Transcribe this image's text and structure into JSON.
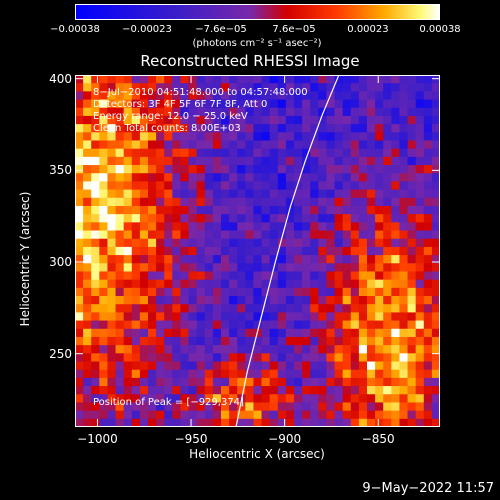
{
  "chart_data": {
    "type": "heatmap",
    "title": "Reconstructed RHESSI Image",
    "xlabel": "Heliocentric X (arcsec)",
    "ylabel": "Heliocentric Y (arcsec)",
    "xlim": [
      -1012,
      -817
    ],
    "ylim": [
      210,
      402
    ],
    "x_ticks": [
      -1000,
      -950,
      -900,
      -850
    ],
    "y_ticks": [
      250,
      300,
      350,
      400
    ],
    "x_tick_labels": [
      "−1000",
      "−950",
      "−900",
      "−850"
    ],
    "y_tick_labels": [
      "250",
      "300",
      "350",
      "400"
    ],
    "colorbar": {
      "tick_values": [
        -0.00038,
        -0.00023,
        -7.6e-05,
        7.6e-05,
        0.00023,
        0.00038
      ],
      "tick_labels": [
        "−0.00038",
        "−0.00023",
        "−7.6e−05",
        "7.6e−05",
        "0.00023",
        "0.00038"
      ],
      "unit": "(photons cm⁻² s⁻¹ asec⁻²)"
    },
    "annotations": [
      "8−Jul−2010 04:51:48.000 to 04:57:48.000",
      "Detectors: 3F 4F 5F 6F 7F 8F, Att 0",
      "Energy range: 12.0 − 25.0 keV",
      "Clean    Total counts: 8.00E+03"
    ],
    "peak_label": "Position of Peak = [−929,374]",
    "peak_position": [
      -929,
      374
    ],
    "limb_points": [
      [
        -871,
        402
      ],
      [
        -880,
        380
      ],
      [
        -889,
        355
      ],
      [
        -897,
        330
      ],
      [
        -905,
        300
      ],
      [
        -913,
        268
      ],
      [
        -920,
        240
      ],
      [
        -926,
        210
      ]
    ],
    "grid": false
  },
  "footer": {
    "date": "9−May−2022 11:57"
  }
}
